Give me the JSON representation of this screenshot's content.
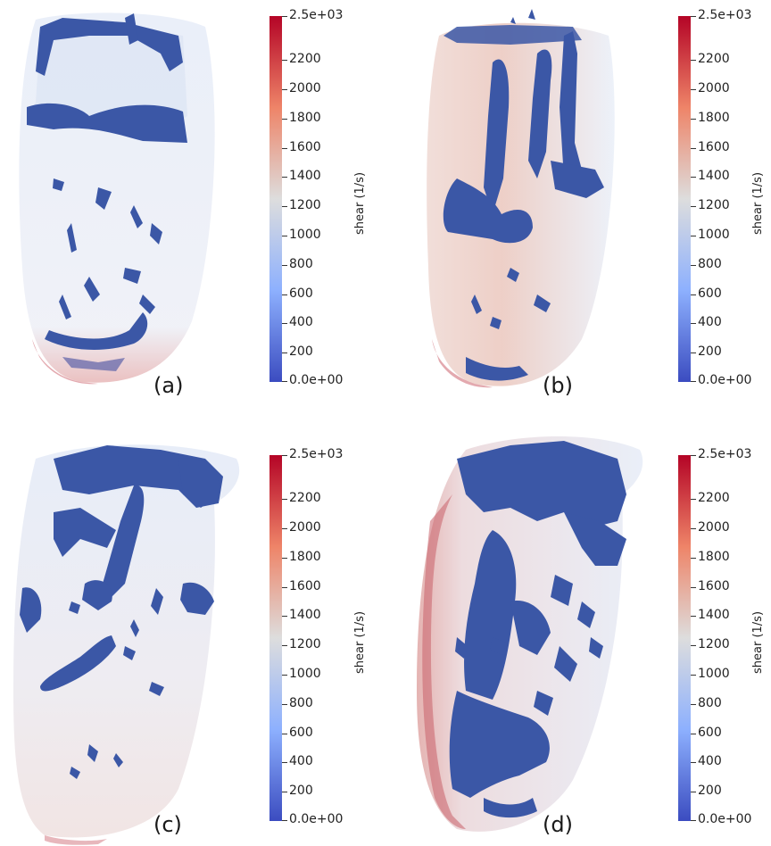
{
  "panels": [
    {
      "id": "a",
      "caption": "(a)"
    },
    {
      "id": "b",
      "caption": "(b)"
    },
    {
      "id": "c",
      "caption": "(c)"
    },
    {
      "id": "d",
      "caption": "(d)"
    }
  ],
  "colorbar": {
    "title": "shear (1/s)",
    "range": [
      0,
      2500
    ],
    "max_label": "2.5e+03",
    "min_label": "0.0e+00",
    "ticks": [
      "2200",
      "2000",
      "1800",
      "1600",
      "1400",
      "1200",
      "1000",
      "800",
      "600",
      "400",
      "200"
    ],
    "colors": {
      "low": "#3b4cc0",
      "mid": "#dddddd",
      "high": "#b40426"
    }
  }
}
